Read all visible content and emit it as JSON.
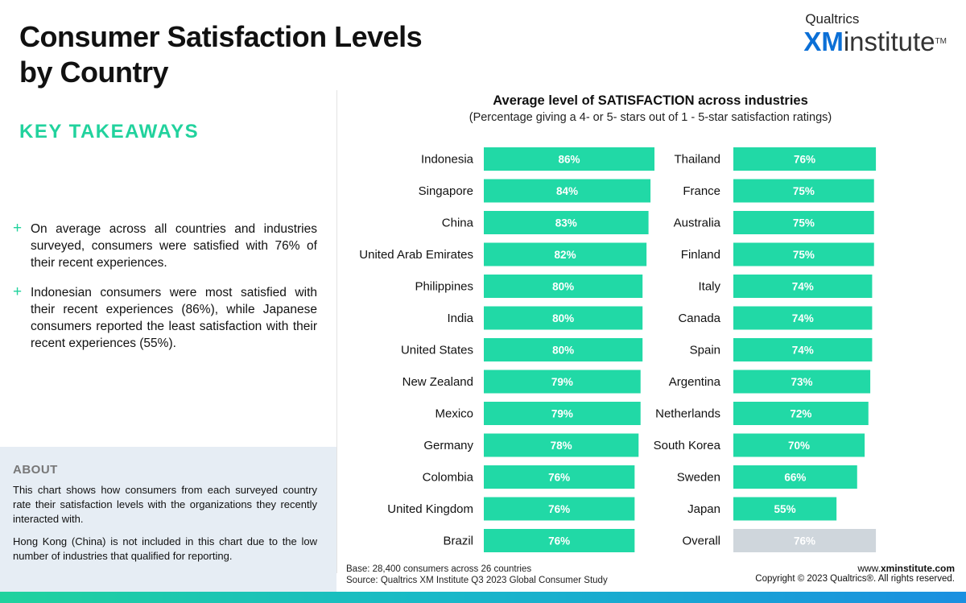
{
  "header": {
    "title_line1": "Consumer Satisfaction Levels",
    "title_line2": "by Country",
    "brand_top": "Qualtrics",
    "brand_xm": "XM",
    "brand_rest": "institute",
    "brand_tm": "TM"
  },
  "takeaways": {
    "heading": "KEY TAKEAWAYS",
    "items": [
      "On average across all countries and industries surveyed, consumers were satisfied with 76% of their recent experiences.",
      "Indonesian consumers were most satisfied with their recent experiences (86%), while Japanese consumers reported the least satisfaction with their recent experiences (55%)."
    ]
  },
  "about": {
    "heading": "ABOUT",
    "paragraphs": [
      "This chart shows how consumers from each surveyed country rate their satisfaction levels with the organizations they recently interacted with.",
      "Hong Kong (China) is not included in this chart due to the low number of industries that qualified for reporting."
    ]
  },
  "footer": {
    "base": "Base: 28,400 consumers across 26 countries",
    "source": "Source: Qualtrics XM Institute Q3 2023 Global Consumer Study",
    "website_prefix": "www.",
    "website_domain": "xminstitute.com",
    "copyright": "Copyright © 2023 Qualtrics®. All rights reserved."
  },
  "colors": {
    "bar": "#21d9a6",
    "overall_bar": "#cfd6dc",
    "accent": "#21d29d",
    "brand_blue": "#0b6fd6"
  },
  "chart_data": {
    "type": "bar",
    "orientation": "horizontal",
    "title": "Average level of SATISFACTION across industries",
    "subtitle": "(Percentage giving a 4- or 5- stars out of 1 - 5-star satisfaction ratings)",
    "unit": "%",
    "xlim": [
      0,
      100
    ],
    "columns": [
      {
        "categories": [
          "Indonesia",
          "Singapore",
          "China",
          "United Arab Emirates",
          "Philippines",
          "India",
          "United States",
          "New Zealand",
          "Mexico",
          "Germany",
          "Colombia",
          "United Kingdom",
          "Brazil"
        ],
        "values": [
          86,
          84,
          83,
          82,
          80,
          80,
          80,
          79,
          79,
          78,
          76,
          76,
          76
        ]
      },
      {
        "categories": [
          "Thailand",
          "France",
          "Australia",
          "Finland",
          "Italy",
          "Canada",
          "Spain",
          "Argentina",
          "Netherlands",
          "South Korea",
          "Sweden",
          "Japan",
          "Overall"
        ],
        "values": [
          76,
          75,
          75,
          75,
          74,
          74,
          74,
          73,
          72,
          70,
          66,
          55,
          76
        ],
        "highlight": [
          "Overall"
        ]
      }
    ]
  }
}
